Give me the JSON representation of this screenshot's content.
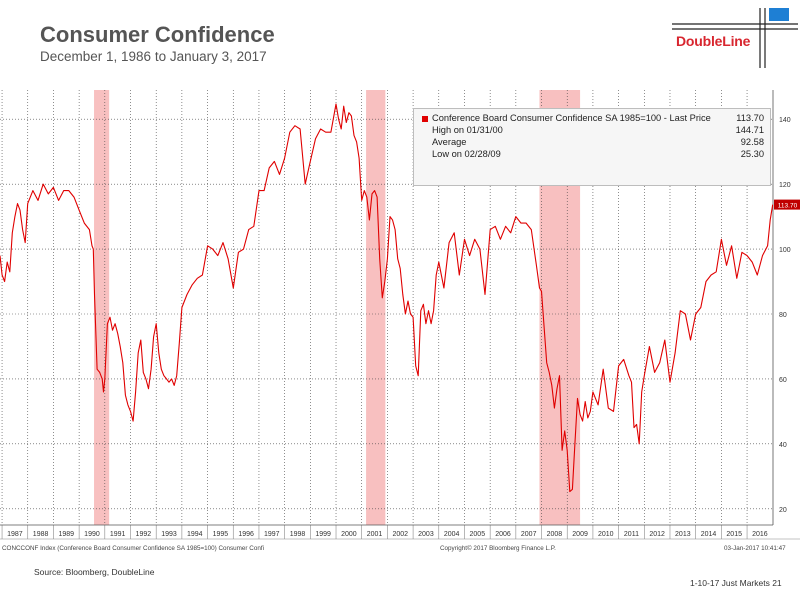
{
  "header": {
    "title": "Consumer Confidence",
    "subtitle": "December 1, 1986 to January 3, 2017",
    "brand": "DoubleLine"
  },
  "colors": {
    "line": "#e00000",
    "recession": "#f7b5b5",
    "brand": "#d8262f"
  },
  "legend": {
    "rows": [
      {
        "label": "Conference Board Consumer Confidence SA 1985=100 - Last Price",
        "value": "113.70"
      },
      {
        "label": "High on 01/31/00",
        "value": "144.71"
      },
      {
        "label": "Average",
        "value": "92.58"
      },
      {
        "label": "Low on 02/28/09",
        "value": "25.30"
      }
    ]
  },
  "source_strip": {
    "left": "CONCCONF Index (Conference Board Consumer Confidence SA 1985=100) Consumer Confi",
    "mid": "Copyright© 2017 Bloomberg Finance L.P.",
    "right": "03-Jan-2017 10:41:47"
  },
  "footer": {
    "source": "Source: Bloomberg, DoubleLine",
    "page": "1-10-17 Just Markets   21"
  },
  "chart_data": {
    "type": "line",
    "title": "Consumer Confidence",
    "xlabel": "",
    "ylabel": "",
    "xlim": [
      1986.92,
      2017.01
    ],
    "ylim": [
      15,
      149
    ],
    "yticks": [
      20,
      40,
      60,
      80,
      100,
      120,
      140
    ],
    "xticks": [
      "1987",
      "1988",
      "1989",
      "1990",
      "1991",
      "1992",
      "1993",
      "1994",
      "1995",
      "1996",
      "1997",
      "1998",
      "1999",
      "2000",
      "2001",
      "2002",
      "2003",
      "2004",
      "2005",
      "2006",
      "2007",
      "2008",
      "2009",
      "2010",
      "2011",
      "2012",
      "2013",
      "2014",
      "2015",
      "2016"
    ],
    "grid": true,
    "last_price_label": "113.70",
    "recessions": [
      [
        1990.58,
        1991.17
      ],
      [
        2001.17,
        2001.92
      ],
      [
        2007.92,
        2009.5
      ]
    ],
    "series": [
      {
        "values": [
          [
            1986.92,
            98
          ],
          [
            1987.0,
            92
          ],
          [
            1987.1,
            90
          ],
          [
            1987.2,
            96
          ],
          [
            1987.3,
            93
          ],
          [
            1987.4,
            105
          ],
          [
            1987.5,
            110
          ],
          [
            1987.6,
            114
          ],
          [
            1987.7,
            112
          ],
          [
            1987.8,
            106
          ],
          [
            1987.9,
            102
          ],
          [
            1988.0,
            114
          ],
          [
            1988.2,
            118
          ],
          [
            1988.4,
            115
          ],
          [
            1988.6,
            120
          ],
          [
            1988.8,
            117
          ],
          [
            1989.0,
            119
          ],
          [
            1989.2,
            115
          ],
          [
            1989.4,
            118
          ],
          [
            1989.6,
            118
          ],
          [
            1989.8,
            116
          ],
          [
            1990.0,
            112
          ],
          [
            1990.2,
            108
          ],
          [
            1990.4,
            106
          ],
          [
            1990.5,
            101
          ],
          [
            1990.55,
            100
          ],
          [
            1990.6,
            86
          ],
          [
            1990.7,
            63
          ],
          [
            1990.8,
            62
          ],
          [
            1990.9,
            60
          ],
          [
            1990.95,
            56
          ],
          [
            1991.0,
            60
          ],
          [
            1991.1,
            77
          ],
          [
            1991.2,
            79
          ],
          [
            1991.3,
            75
          ],
          [
            1991.4,
            77
          ],
          [
            1991.5,
            74
          ],
          [
            1991.6,
            70
          ],
          [
            1991.7,
            65
          ],
          [
            1991.8,
            55
          ],
          [
            1991.9,
            52
          ],
          [
            1992.0,
            50
          ],
          [
            1992.1,
            47
          ],
          [
            1992.2,
            56
          ],
          [
            1992.3,
            68
          ],
          [
            1992.4,
            72
          ],
          [
            1992.5,
            62
          ],
          [
            1992.6,
            60
          ],
          [
            1992.7,
            57
          ],
          [
            1992.8,
            63
          ],
          [
            1992.9,
            73
          ],
          [
            1993.0,
            77
          ],
          [
            1993.1,
            68
          ],
          [
            1993.2,
            63
          ],
          [
            1993.3,
            61
          ],
          [
            1993.4,
            60
          ],
          [
            1993.5,
            59
          ],
          [
            1993.6,
            60
          ],
          [
            1993.7,
            58
          ],
          [
            1993.8,
            61
          ],
          [
            1993.9,
            71
          ],
          [
            1994.0,
            82
          ],
          [
            1994.2,
            86
          ],
          [
            1994.4,
            89
          ],
          [
            1994.6,
            91
          ],
          [
            1994.8,
            92
          ],
          [
            1995.0,
            101
          ],
          [
            1995.2,
            100
          ],
          [
            1995.4,
            98
          ],
          [
            1995.6,
            102
          ],
          [
            1995.8,
            97
          ],
          [
            1996.0,
            88
          ],
          [
            1996.2,
            99
          ],
          [
            1996.4,
            100
          ],
          [
            1996.6,
            106
          ],
          [
            1996.8,
            107
          ],
          [
            1997.0,
            118
          ],
          [
            1997.2,
            118
          ],
          [
            1997.4,
            125
          ],
          [
            1997.6,
            127
          ],
          [
            1997.8,
            123
          ],
          [
            1998.0,
            128
          ],
          [
            1998.2,
            136
          ],
          [
            1998.4,
            138
          ],
          [
            1998.6,
            137
          ],
          [
            1998.8,
            120
          ],
          [
            1999.0,
            127
          ],
          [
            1999.2,
            134
          ],
          [
            1999.4,
            137
          ],
          [
            1999.6,
            136
          ],
          [
            1999.8,
            136
          ],
          [
            2000.0,
            144.7
          ],
          [
            2000.1,
            140
          ],
          [
            2000.2,
            137
          ],
          [
            2000.3,
            144
          ],
          [
            2000.4,
            139
          ],
          [
            2000.5,
            142
          ],
          [
            2000.6,
            141
          ],
          [
            2000.7,
            135
          ],
          [
            2000.8,
            133
          ],
          [
            2000.9,
            128
          ],
          [
            2001.0,
            115
          ],
          [
            2001.1,
            118
          ],
          [
            2001.2,
            116
          ],
          [
            2001.3,
            109
          ],
          [
            2001.4,
            117
          ],
          [
            2001.5,
            118
          ],
          [
            2001.6,
            116
          ],
          [
            2001.7,
            97
          ],
          [
            2001.8,
            85
          ],
          [
            2001.9,
            90
          ],
          [
            2002.0,
            97
          ],
          [
            2002.1,
            110
          ],
          [
            2002.2,
            109
          ],
          [
            2002.3,
            106
          ],
          [
            2002.4,
            97
          ],
          [
            2002.5,
            94
          ],
          [
            2002.6,
            86
          ],
          [
            2002.7,
            80
          ],
          [
            2002.8,
            84
          ],
          [
            2002.9,
            80
          ],
          [
            2003.0,
            79
          ],
          [
            2003.1,
            64
          ],
          [
            2003.2,
            61
          ],
          [
            2003.3,
            81
          ],
          [
            2003.4,
            83
          ],
          [
            2003.5,
            77
          ],
          [
            2003.6,
            81
          ],
          [
            2003.7,
            77
          ],
          [
            2003.8,
            81
          ],
          [
            2003.9,
            92
          ],
          [
            2004.0,
            96
          ],
          [
            2004.2,
            88
          ],
          [
            2004.4,
            102
          ],
          [
            2004.6,
            105
          ],
          [
            2004.8,
            92
          ],
          [
            2005.0,
            103
          ],
          [
            2005.2,
            98
          ],
          [
            2005.4,
            103
          ],
          [
            2005.6,
            100
          ],
          [
            2005.8,
            86
          ],
          [
            2006.0,
            106
          ],
          [
            2006.2,
            107
          ],
          [
            2006.4,
            103
          ],
          [
            2006.6,
            107
          ],
          [
            2006.8,
            105
          ],
          [
            2007.0,
            110
          ],
          [
            2007.2,
            108
          ],
          [
            2007.4,
            108
          ],
          [
            2007.6,
            106
          ],
          [
            2007.8,
            95
          ],
          [
            2007.92,
            88
          ],
          [
            2008.0,
            87
          ],
          [
            2008.1,
            76
          ],
          [
            2008.2,
            65
          ],
          [
            2008.3,
            62
          ],
          [
            2008.4,
            58
          ],
          [
            2008.5,
            51
          ],
          [
            2008.6,
            57
          ],
          [
            2008.7,
            61
          ],
          [
            2008.8,
            38
          ],
          [
            2008.9,
            44
          ],
          [
            2009.0,
            38
          ],
          [
            2009.1,
            25.3
          ],
          [
            2009.2,
            26
          ],
          [
            2009.3,
            40
          ],
          [
            2009.4,
            54
          ],
          [
            2009.5,
            49
          ],
          [
            2009.6,
            47
          ],
          [
            2009.7,
            53
          ],
          [
            2009.8,
            48
          ],
          [
            2009.9,
            50
          ],
          [
            2010.0,
            56
          ],
          [
            2010.2,
            52
          ],
          [
            2010.4,
            63
          ],
          [
            2010.6,
            51
          ],
          [
            2010.8,
            50
          ],
          [
            2011.0,
            64
          ],
          [
            2011.2,
            66
          ],
          [
            2011.4,
            61
          ],
          [
            2011.5,
            59
          ],
          [
            2011.6,
            45
          ],
          [
            2011.7,
            46
          ],
          [
            2011.8,
            40
          ],
          [
            2011.9,
            56
          ],
          [
            2012.0,
            61
          ],
          [
            2012.2,
            70
          ],
          [
            2012.4,
            62
          ],
          [
            2012.6,
            65
          ],
          [
            2012.8,
            72
          ],
          [
            2013.0,
            59
          ],
          [
            2013.2,
            68
          ],
          [
            2013.4,
            81
          ],
          [
            2013.6,
            80
          ],
          [
            2013.8,
            72
          ],
          [
            2014.0,
            80
          ],
          [
            2014.2,
            82
          ],
          [
            2014.4,
            90
          ],
          [
            2014.6,
            92
          ],
          [
            2014.8,
            93
          ],
          [
            2015.0,
            103
          ],
          [
            2015.2,
            95
          ],
          [
            2015.4,
            101
          ],
          [
            2015.6,
            91
          ],
          [
            2015.8,
            99
          ],
          [
            2016.0,
            98
          ],
          [
            2016.2,
            96
          ],
          [
            2016.4,
            92
          ],
          [
            2016.6,
            98
          ],
          [
            2016.8,
            101
          ],
          [
            2016.9,
            109
          ],
          [
            2017.0,
            113.7
          ]
        ]
      }
    ]
  }
}
